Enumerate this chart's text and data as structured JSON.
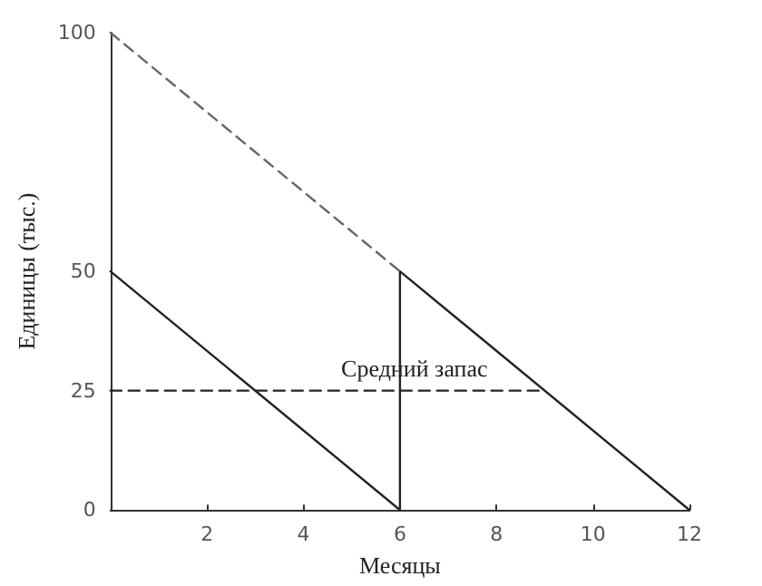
{
  "chart_data": {
    "type": "line",
    "xlabel": "Месяцы",
    "ylabel": "Единицы (тыс.)",
    "xlim": [
      0,
      12
    ],
    "xticks": [
      2,
      4,
      6,
      8,
      10,
      12
    ],
    "ylim": [
      0,
      100
    ],
    "yticks": [
      0,
      25,
      50,
      100
    ],
    "grid": false,
    "legend": false,
    "marker": "none",
    "series": [
      {
        "x": [
          0,
          6,
          6,
          12
        ],
        "values": [
          50,
          0,
          50,
          0
        ],
        "color": "#222222",
        "line_style": "solid"
      },
      {
        "x": [
          0,
          6
        ],
        "values": [
          100,
          50
        ],
        "color": "#666666",
        "line_style": "dashed"
      },
      {
        "name": "Средний запас",
        "x": [
          0,
          9
        ],
        "values": [
          25,
          25
        ],
        "color": "#222222",
        "line_style": "dashed"
      }
    ]
  }
}
